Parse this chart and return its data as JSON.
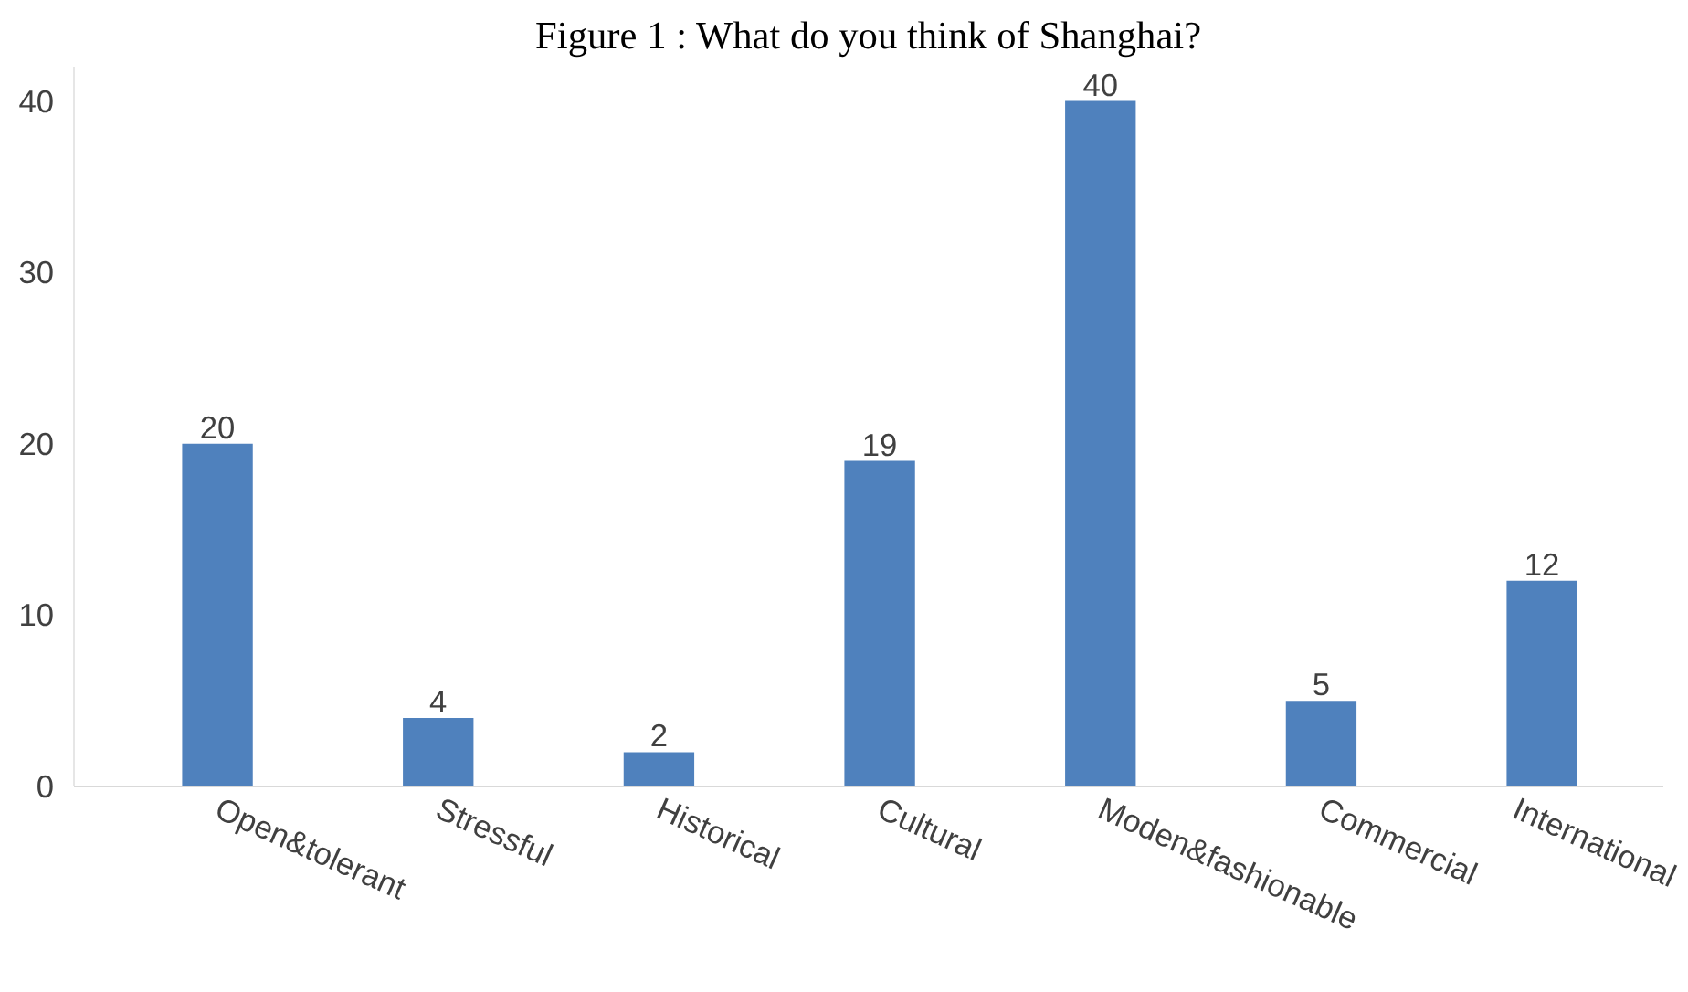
{
  "chart_data": {
    "type": "bar",
    "title": "Figure 1 : What do you think of Shanghai?",
    "categories": [
      "Open&tolerant",
      "Stressful",
      "Historical",
      "Cultural",
      "Moden&fashionable",
      "Commercial",
      "International"
    ],
    "values": [
      20,
      4,
      2,
      19,
      40,
      5,
      12
    ],
    "color": "#4f81bd",
    "ylim": [
      0,
      42
    ],
    "yticks": [
      0,
      10,
      20,
      30,
      40
    ],
    "data_labels": true,
    "grid": false
  }
}
